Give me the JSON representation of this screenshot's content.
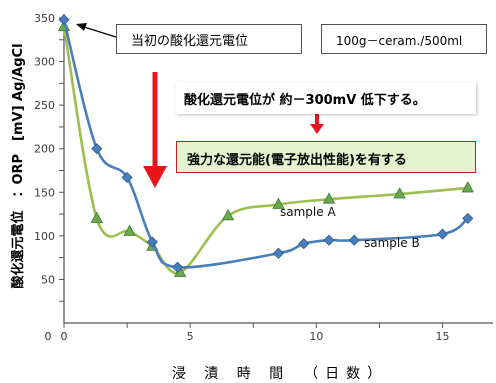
{
  "chart_data": {
    "type": "line",
    "xlabel": "浸 漬 時 間　（日数）",
    "ylabel": "酸化還元電位　：ORP　[mV] Ag/AgCl",
    "xlim": [
      0,
      17
    ],
    "ylim": [
      0,
      350
    ],
    "x_ticks": [
      0,
      5,
      10,
      15
    ],
    "y_ticks": [
      50,
      100,
      150,
      200,
      250,
      300,
      350
    ],
    "x_minor_ticks": [
      2.5,
      7.5,
      12.5
    ],
    "y_minor_ticks": [
      25,
      75,
      125,
      175,
      225,
      275,
      325
    ],
    "grid": false,
    "series": [
      {
        "name": "sample A",
        "color": "#9fbe50",
        "marker": "triangle",
        "x": [
          0,
          1.3,
          2.6,
          3.5,
          4.6,
          6.5,
          8.5,
          10.5,
          13.3,
          16
        ],
        "y": [
          340,
          120,
          105,
          88,
          58,
          123,
          136,
          142,
          148,
          155
        ]
      },
      {
        "name": "sample B",
        "color": "#4a7ebb",
        "marker": "diamond",
        "x": [
          0,
          1.3,
          2.5,
          3.5,
          4.5,
          8.5,
          9.5,
          10.5,
          11.5,
          15,
          16
        ],
        "y": [
          348,
          200,
          167,
          93,
          64,
          80,
          91,
          95,
          95,
          102,
          120
        ]
      }
    ],
    "annotations": {
      "initial_orp": "当初の酸化還元電位",
      "dose": "100g－ceram./500ml",
      "decrease": "酸化還元電位が 約－300mV 低下する。",
      "capability": "強力な還元能(電子放出性能)を有する"
    },
    "annotation_color": "#e8161b"
  }
}
